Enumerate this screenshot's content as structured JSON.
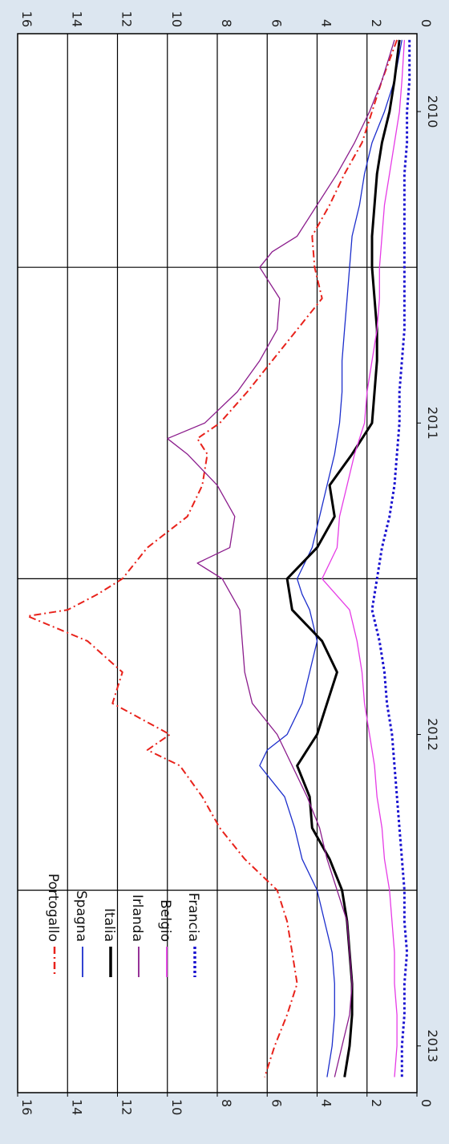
{
  "chart_data": {
    "type": "line",
    "title": "",
    "xlabel": "",
    "ylabel": "",
    "ylim": [
      0,
      16
    ],
    "yticks": [
      0,
      2,
      4,
      6,
      8,
      10,
      12,
      14,
      16
    ],
    "xlim": [
      2009.75,
      2013.15
    ],
    "xticks": [
      {
        "label": "2010",
        "value": 2010.0
      },
      {
        "label": "2011",
        "value": 2011.0
      },
      {
        "label": "2012",
        "value": 2012.0
      },
      {
        "label": "2013",
        "value": 2013.0
      }
    ],
    "year_dividers": [
      2010.5,
      2011.5,
      2012.5
    ],
    "grid": {
      "horizontal": true,
      "at": [
        2,
        4,
        6,
        8,
        10,
        12,
        14
      ]
    },
    "orientation": "rotated-90-clockwise",
    "legend_position": "bottom-left",
    "background": "#ffffff",
    "frame_background": "#dce6f0",
    "series": [
      {
        "name": "Portogallo",
        "color": "#e8221b",
        "style": "dashdot",
        "x": [
          2009.77,
          2009.9,
          2010.0,
          2010.1,
          2010.2,
          2010.3,
          2010.4,
          2010.5,
          2010.6,
          2010.7,
          2010.8,
          2010.9,
          2011.0,
          2011.05,
          2011.1,
          2011.2,
          2011.3,
          2011.4,
          2011.5,
          2011.55,
          2011.6,
          2011.62,
          2011.7,
          2011.8,
          2011.9,
          2012.0,
          2012.05,
          2012.1,
          2012.2,
          2012.3,
          2012.4,
          2012.5,
          2012.6,
          2012.7,
          2012.8,
          2012.9,
          2013.0,
          2013.1
        ],
        "values": [
          0.8,
          1.4,
          1.8,
          2.2,
          2.9,
          3.5,
          4.2,
          4.1,
          3.8,
          4.8,
          5.8,
          6.8,
          7.9,
          8.8,
          8.4,
          8.6,
          9.2,
          10.8,
          11.8,
          12.8,
          14.0,
          15.6,
          13.2,
          11.8,
          12.2,
          9.9,
          10.8,
          9.5,
          8.6,
          7.9,
          6.9,
          5.6,
          5.2,
          5.0,
          4.8,
          5.2,
          5.7,
          6.1
        ]
      },
      {
        "name": "Spagna",
        "color": "#1c2ecc",
        "style": "solid",
        "x": [
          2009.77,
          2009.9,
          2010.0,
          2010.1,
          2010.2,
          2010.3,
          2010.4,
          2010.5,
          2010.6,
          2010.7,
          2010.8,
          2010.9,
          2011.0,
          2011.1,
          2011.2,
          2011.3,
          2011.4,
          2011.5,
          2011.55,
          2011.6,
          2011.7,
          2011.8,
          2011.9,
          2012.0,
          2012.05,
          2012.1,
          2012.2,
          2012.3,
          2012.4,
          2012.5,
          2012.6,
          2012.7,
          2012.8,
          2012.9,
          2013.0,
          2013.1
        ],
        "values": [
          0.6,
          0.9,
          1.3,
          1.8,
          2.1,
          2.3,
          2.6,
          2.7,
          2.8,
          2.9,
          3.0,
          3.0,
          3.1,
          3.3,
          3.6,
          3.9,
          4.2,
          4.8,
          4.6,
          4.3,
          4.0,
          4.3,
          4.6,
          5.2,
          6.0,
          6.3,
          5.3,
          4.9,
          4.6,
          4.0,
          3.7,
          3.4,
          3.3,
          3.3,
          3.4,
          3.6
        ]
      },
      {
        "name": "Italia",
        "color": "#000000",
        "style": "solid-thick",
        "x": [
          2009.77,
          2009.9,
          2010.0,
          2010.1,
          2010.2,
          2010.3,
          2010.4,
          2010.5,
          2010.6,
          2010.7,
          2010.8,
          2010.9,
          2011.0,
          2011.1,
          2011.2,
          2011.3,
          2011.4,
          2011.5,
          2011.6,
          2011.7,
          2011.8,
          2011.9,
          2012.0,
          2012.1,
          2012.2,
          2012.3,
          2012.4,
          2012.5,
          2012.6,
          2012.7,
          2012.8,
          2012.9,
          2013.0,
          2013.1
        ],
        "values": [
          0.7,
          0.9,
          1.1,
          1.4,
          1.6,
          1.7,
          1.8,
          1.8,
          1.7,
          1.6,
          1.6,
          1.7,
          1.8,
          2.6,
          3.5,
          3.3,
          4.0,
          5.2,
          5.0,
          3.8,
          3.2,
          3.6,
          4.0,
          4.8,
          4.3,
          4.2,
          3.5,
          3.0,
          2.8,
          2.7,
          2.6,
          2.6,
          2.7,
          2.9
        ]
      },
      {
        "name": "Irlanda",
        "color": "#8b1c8c",
        "style": "solid",
        "x": [
          2009.77,
          2009.9,
          2010.0,
          2010.1,
          2010.2,
          2010.3,
          2010.4,
          2010.45,
          2010.5,
          2010.6,
          2010.7,
          2010.8,
          2010.9,
          2011.0,
          2011.05,
          2011.1,
          2011.2,
          2011.3,
          2011.4,
          2011.45,
          2011.5,
          2011.6,
          2011.7,
          2011.8,
          2011.9,
          2012.0,
          2012.1,
          2012.2,
          2012.3,
          2012.4,
          2012.5,
          2012.6,
          2012.7,
          2012.8,
          2012.9,
          2013.0,
          2013.1
        ],
        "values": [
          0.9,
          1.4,
          1.9,
          2.5,
          3.2,
          4.0,
          4.8,
          5.8,
          6.3,
          5.5,
          5.6,
          6.3,
          7.2,
          8.5,
          10.0,
          9.2,
          8.0,
          7.3,
          7.5,
          8.8,
          7.8,
          7.1,
          7.0,
          6.9,
          6.6,
          5.6,
          5.0,
          4.4,
          3.9,
          3.6,
          3.2,
          2.8,
          2.7,
          2.6,
          2.7,
          3.0,
          3.3
        ]
      },
      {
        "name": "Belgio",
        "color": "#e63be6",
        "style": "solid",
        "x": [
          2009.77,
          2009.9,
          2010.0,
          2010.1,
          2010.2,
          2010.3,
          2010.4,
          2010.5,
          2010.6,
          2010.7,
          2010.8,
          2010.9,
          2011.0,
          2011.1,
          2011.2,
          2011.3,
          2011.4,
          2011.5,
          2011.6,
          2011.7,
          2011.8,
          2011.9,
          2012.0,
          2012.1,
          2012.2,
          2012.3,
          2012.4,
          2012.5,
          2012.6,
          2012.7,
          2012.8,
          2012.9,
          2013.0,
          2013.1
        ],
        "values": [
          0.5,
          0.6,
          0.7,
          0.9,
          1.1,
          1.3,
          1.4,
          1.5,
          1.5,
          1.6,
          1.8,
          2.0,
          2.1,
          2.5,
          2.8,
          3.1,
          3.2,
          3.8,
          2.7,
          2.4,
          2.2,
          2.1,
          1.9,
          1.7,
          1.6,
          1.4,
          1.3,
          1.1,
          1.0,
          0.9,
          0.9,
          0.8,
          0.8,
          0.9
        ]
      },
      {
        "name": "Francia",
        "color": "#1a12d0",
        "style": "dotted",
        "x": [
          2009.77,
          2009.9,
          2010.0,
          2010.1,
          2010.2,
          2010.3,
          2010.4,
          2010.5,
          2010.6,
          2010.7,
          2010.8,
          2010.9,
          2011.0,
          2011.1,
          2011.2,
          2011.3,
          2011.4,
          2011.5,
          2011.6,
          2011.7,
          2011.8,
          2011.9,
          2012.0,
          2012.1,
          2012.2,
          2012.3,
          2012.4,
          2012.5,
          2012.6,
          2012.7,
          2012.8,
          2012.9,
          2013.0,
          2013.1
        ],
        "values": [
          0.3,
          0.3,
          0.4,
          0.4,
          0.5,
          0.5,
          0.5,
          0.5,
          0.5,
          0.5,
          0.6,
          0.7,
          0.7,
          0.8,
          0.9,
          1.1,
          1.4,
          1.6,
          1.8,
          1.5,
          1.3,
          1.2,
          1.0,
          0.9,
          0.8,
          0.7,
          0.6,
          0.5,
          0.5,
          0.4,
          0.5,
          0.5,
          0.6,
          0.6
        ]
      }
    ]
  }
}
